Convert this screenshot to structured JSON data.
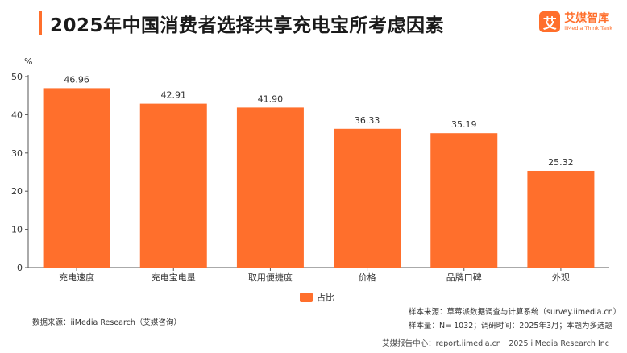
{
  "header": {
    "title": "2025年中国消费者选择共享充电宝所考虑因素",
    "logo_mark": "艾",
    "logo_name": "艾媒智库",
    "logo_sub": "iiMedia Think Tank"
  },
  "chart_data": {
    "type": "bar",
    "categories": [
      "充电速度",
      "充电宝电量",
      "取用便捷度",
      "价格",
      "品牌口碑",
      "外观"
    ],
    "series": [
      {
        "name": "占比",
        "values": [
          46.96,
          42.91,
          41.9,
          36.33,
          35.19,
          25.32
        ]
      }
    ],
    "y_unit": "%",
    "ylim": [
      0,
      50
    ],
    "yticks": [
      0,
      10,
      20,
      30,
      40,
      50
    ],
    "grid": false,
    "legend_position": "bottom-center",
    "bar_color": "#ff6f2c"
  },
  "notes": {
    "source": "数据来源：iiMedia Research（艾媒咨询）",
    "sample_source": "样本来源：草莓派数据调查与计算系统（survey.iimedia.cn）",
    "sample_size": "样本量：N= 1032；调研时间：2025年3月；本题为多选题",
    "footer": "艾媒报告中心：report.iimedia.cn　2025 iiMedia Research Inc"
  }
}
